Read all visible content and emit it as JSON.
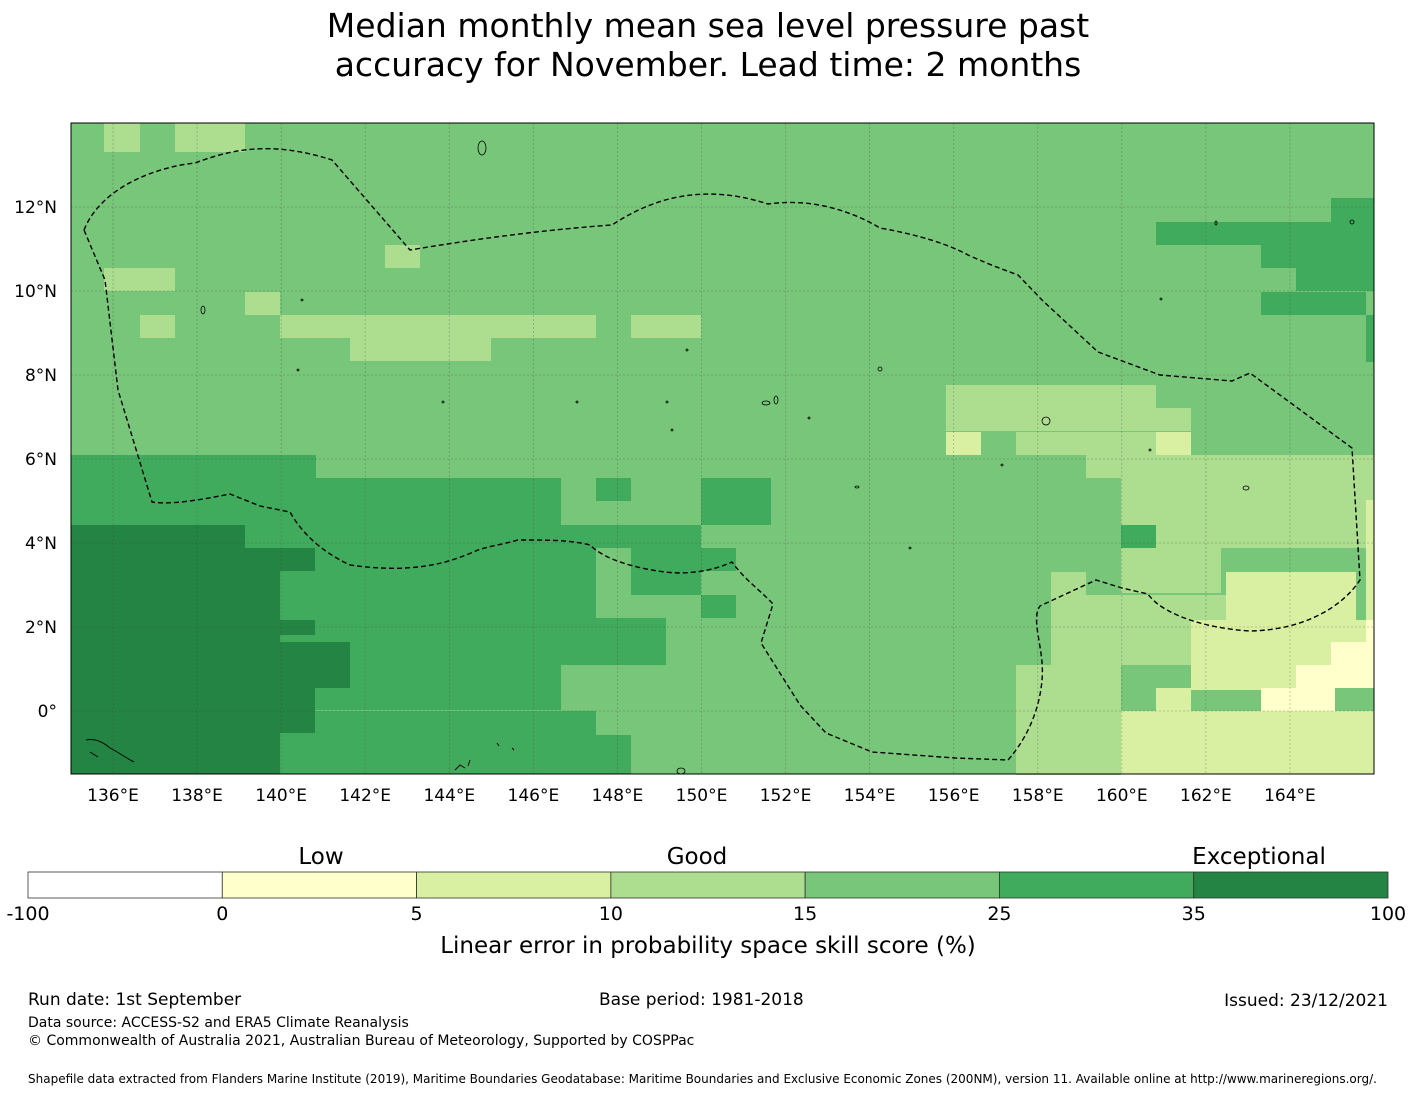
{
  "title": {
    "line1": "Median monthly mean sea level pressure past",
    "line2": "accuracy for November. Lead time: 2 months"
  },
  "map": {
    "lon_range": [
      135.0,
      166.0
    ],
    "lat_range": [
      -1.5,
      14.0
    ],
    "x_ticks": [
      "136°E",
      "138°E",
      "140°E",
      "142°E",
      "144°E",
      "146°E",
      "148°E",
      "150°E",
      "152°E",
      "154°E",
      "156°E",
      "158°E",
      "160°E",
      "162°E",
      "164°E"
    ],
    "x_tick_values": [
      136,
      138,
      140,
      142,
      144,
      146,
      148,
      150,
      152,
      154,
      156,
      158,
      160,
      162,
      164
    ],
    "y_ticks": [
      "0°",
      "2°N",
      "4°N",
      "6°N",
      "8°N",
      "10°N",
      "12°N"
    ],
    "y_tick_values": [
      0,
      2,
      4,
      6,
      8,
      10,
      12
    ],
    "grid": true,
    "boundary": "dashed EEZ outline",
    "fill_levels": [
      "#ffffcc",
      "#d9f0a3",
      "#addd8e",
      "#78c679",
      "#41ab5d",
      "#238443"
    ]
  },
  "colorbar": {
    "categories": [
      "Low",
      "Good",
      "Exceptional"
    ],
    "ticks": [
      "-100",
      "0",
      "5",
      "10",
      "15",
      "25",
      "35",
      "100"
    ],
    "colors": [
      "#ffffff",
      "#ffffcc",
      "#d9f0a3",
      "#addd8e",
      "#78c679",
      "#41ab5d",
      "#238443"
    ],
    "label": "Linear error in probability space skill score (%)"
  },
  "footer": {
    "run_date": "Run date: 1st September",
    "base_period": "Base period: 1981-2018",
    "issued": "Issued: 23/12/2021",
    "data_source": "Data source: ACCESS-S2 and ERA5 Climate Reanalysis",
    "copyright": "© Commonwealth of Australia 2021, Australian Bureau of Meteorology, Supported by COSPPac",
    "shapefile": "Shapefile data extracted from Flanders Marine Institute (2019), Maritime Boundaries Geodatabase: Maritime Boundaries and Exclusive Economic Zones (200NM), version 11. Available online at http://www.marineregions.org/."
  }
}
